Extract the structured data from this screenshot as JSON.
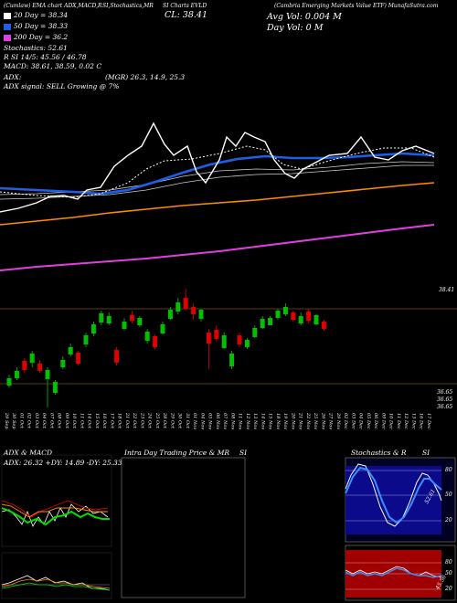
{
  "header": {
    "top_left": "(Cumlaw) EMA chart ADX,MACD,R",
    "top_mid": "SI,Stochastics,MR",
    "top_ticker": "SI Charts EVLD",
    "top_right": "(Cambria Emerging Markets Value ETF) MunafaSutra.com",
    "close_label": "CL: 38.41",
    "avg_vol_label": "Avg Vol: 0.004 M",
    "day_vol_label": "Day Vol: 0   M"
  },
  "legend": [
    {
      "label": "20   Day = 38.34",
      "color": "#ffffff"
    },
    {
      "label": "50   Day = 38.33",
      "color": "#1f5fe8"
    },
    {
      "label": "200   Day = 36.2",
      "color": "#e040e0"
    }
  ],
  "indicators": {
    "stochastics": "Stochastics: 52.61",
    "rsi": "R   SI 14/5: 45.56 / 46.78",
    "macd": "MACD: 38.61, 38.59, 0.02  C",
    "adx": "ADX:",
    "mgr": "(MGR) 26.3, 14.9, 25.3",
    "adx_signal": "ADX  signal: SELL Growing @ 7%"
  },
  "price_labels": {
    "current": "38.41",
    "low1": "36.65",
    "low2": "36.65",
    "low3": "36.65"
  },
  "x_labels": [
    "29 Sep",
    "30 Sep",
    "01 Oct",
    "02 Oct",
    "03 Oct",
    "04 Oct",
    "07 Oct",
    "08 Oct",
    "09 Oct",
    "10 Oct",
    "11 Oct",
    "14 Oct",
    "15 Oct",
    "16 Oct",
    "17 Oct",
    "18 Oct",
    "21 Oct",
    "22 Oct",
    "23 Oct",
    "24 Oct",
    "25 Oct",
    "28 Oct",
    "29 Oct",
    "30 Oct",
    "31 Oct",
    "01 Nov",
    "04 Nov",
    "05 Nov",
    "06 Nov",
    "07 Nov",
    "08 Nov",
    "11 Nov",
    "12 Nov",
    "13 Nov",
    "14 Nov",
    "15 Nov",
    "18 Nov",
    "19 Nov",
    "20 Nov",
    "21 Nov",
    "22 Nov",
    "25 Nov",
    "26 Nov",
    "27 Nov",
    "29 Nov",
    "02 Dec",
    "03 Dec",
    "04 Dec",
    "05 Dec",
    "06 Dec",
    "09 Dec",
    "10 Dec",
    "11 Dec",
    "12 Dec",
    "13 Dec",
    "16 Dec",
    "17 Dec"
  ],
  "panels": {
    "adx_macd_title": "ADX  & MACD",
    "adx_values": "ADX: 26.32  +DY: 14.89  -DY: 25.33",
    "intraday_title": "Intra  Day Trading Price  & MR",
    "intraday_si": "SI",
    "stoch_title": "Stochastics & R",
    "stoch_si": "SI",
    "stoch_axis": [
      "80",
      "50",
      "20"
    ],
    "stoch_value": "52.61",
    "rsi_axis": [
      "80",
      "50",
      "20"
    ],
    "rsi_value": "45.56"
  },
  "colors": {
    "up": "#00c000",
    "down": "#e00000",
    "ema20": "#ffffff",
    "ema50": "#1f5fe8",
    "ema200": "#e040e0",
    "ema_orange": "#ff8c00"
  }
}
